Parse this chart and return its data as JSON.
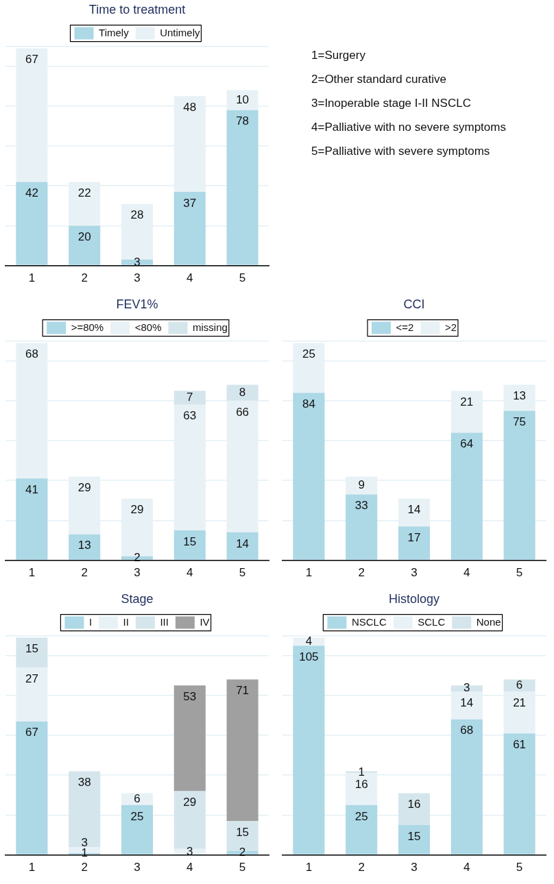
{
  "chart_data": [
    {
      "type": "bar",
      "title": "Time to treatment",
      "categories": [
        "1",
        "2",
        "3",
        "4",
        "5"
      ],
      "stacked": true,
      "legend": "top",
      "grid": "y",
      "tick_labels": "x",
      "data_labels": true,
      "ylim": [
        0,
        110
      ],
      "series": [
        {
          "name": "Timely",
          "color": "#add8e6",
          "values": [
            42,
            20,
            3,
            37,
            78
          ]
        },
        {
          "name": "Untimely",
          "color": "#e8f2f6",
          "values": [
            67,
            22,
            28,
            48,
            10
          ]
        }
      ]
    },
    {
      "type": "other",
      "annotations": [
        "1=Surgery",
        "2=Other standard curative",
        "3=Inoperable stage I-II NSCLC",
        "4=Palliative with no severe symptoms",
        "5=Palliative with severe symptoms"
      ]
    },
    {
      "type": "bar",
      "title": "FEV1%",
      "categories": [
        "1",
        "2",
        "3",
        "4",
        "5"
      ],
      "stacked": true,
      "legend": "top",
      "grid": "y",
      "tick_labels": "x",
      "data_labels": true,
      "ylim": [
        0,
        110
      ],
      "series": [
        {
          "name": ">=80%",
          "color": "#add8e6",
          "values": [
            41,
            13,
            2,
            15,
            14
          ]
        },
        {
          "name": "<80%",
          "color": "#e8f2f6",
          "values": [
            68,
            29,
            29,
            63,
            66
          ]
        },
        {
          "name": "missing",
          "color": "#d5e5ec",
          "values": [
            null,
            null,
            null,
            7,
            8
          ]
        }
      ]
    },
    {
      "type": "bar",
      "title": "CCI",
      "categories": [
        "1",
        "2",
        "3",
        "4",
        "5"
      ],
      "stacked": true,
      "legend": "top",
      "grid": "y",
      "tick_labels": "x",
      "data_labels": true,
      "ylim": [
        0,
        110
      ],
      "series": [
        {
          "name": "<=2",
          "color": "#add8e6",
          "values": [
            84,
            33,
            17,
            64,
            75
          ]
        },
        {
          "name": ">2",
          "color": "#e8f2f6",
          "values": [
            25,
            9,
            14,
            21,
            13
          ]
        }
      ]
    },
    {
      "type": "bar",
      "title": "Stage",
      "categories": [
        "1",
        "2",
        "3",
        "4",
        "5"
      ],
      "stacked": true,
      "legend": "top",
      "grid": "y",
      "tick_labels": "x",
      "data_labels": true,
      "ylim": [
        0,
        110
      ],
      "series": [
        {
          "name": "I",
          "color": "#add8e6",
          "values": [
            67,
            1,
            25,
            null,
            2
          ]
        },
        {
          "name": "II",
          "color": "#e8f2f6",
          "values": [
            27,
            3,
            6,
            3,
            null
          ]
        },
        {
          "name": "III",
          "color": "#d5e5ec",
          "values": [
            15,
            38,
            null,
            29,
            15
          ]
        },
        {
          "name": "IV",
          "color": "#a0a0a0",
          "values": [
            null,
            null,
            null,
            53,
            71
          ]
        }
      ]
    },
    {
      "type": "bar",
      "title": "Histology",
      "categories": [
        "1",
        "2",
        "3",
        "4",
        "5"
      ],
      "stacked": true,
      "legend": "top",
      "grid": "y",
      "tick_labels": "x",
      "data_labels": true,
      "ylim": [
        0,
        110
      ],
      "series": [
        {
          "name": "NSCLC",
          "color": "#add8e6",
          "values": [
            105,
            25,
            15,
            68,
            61
          ]
        },
        {
          "name": "SCLC",
          "color": "#e8f2f6",
          "values": [
            4,
            16,
            null,
            14,
            21
          ]
        },
        {
          "name": "None",
          "color": "#d5e5ec",
          "values": [
            null,
            1,
            16,
            3,
            6
          ]
        }
      ]
    }
  ]
}
